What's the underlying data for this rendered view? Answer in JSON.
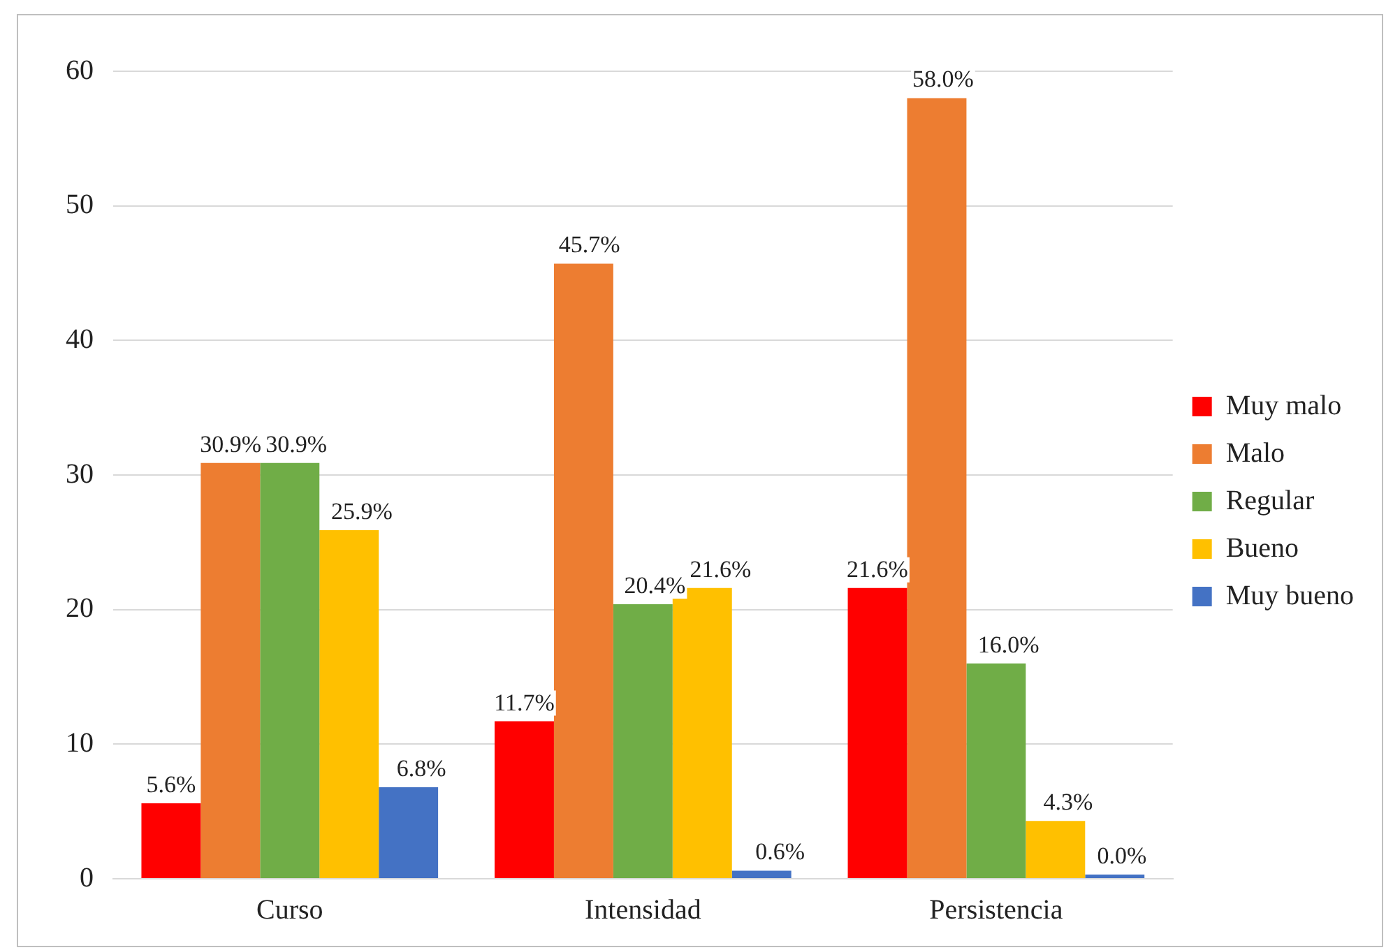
{
  "chart_data": {
    "type": "bar",
    "categories": [
      "Curso",
      "Intensidad",
      "Persistencia"
    ],
    "series": [
      {
        "name": "Muy malo",
        "color": "#ff0000",
        "values": [
          5.6,
          11.7,
          21.6
        ],
        "value_labels": [
          "5.6%",
          "11.7%",
          "21.6%"
        ]
      },
      {
        "name": "Malo",
        "color": "#ed7d31",
        "values": [
          30.9,
          45.7,
          58.0
        ],
        "value_labels": [
          "30.9%",
          "45.7%",
          "58.0%"
        ]
      },
      {
        "name": "Regular",
        "color": "#70ad47",
        "values": [
          30.9,
          20.4,
          16.0
        ],
        "value_labels": [
          "30.9%",
          "20.4%",
          "16.0%"
        ]
      },
      {
        "name": "Bueno",
        "color": "#ffc000",
        "values": [
          25.9,
          21.6,
          4.3
        ],
        "value_labels": [
          "25.9%",
          "21.6%",
          "4.3%"
        ]
      },
      {
        "name": "Muy bueno",
        "color": "#4472c4",
        "values": [
          6.8,
          0.6,
          0.0
        ],
        "value_labels": [
          "6.8%",
          "0.6%",
          "0.0%"
        ]
      }
    ],
    "ylim": [
      0,
      60
    ],
    "yticks": [
      0,
      10,
      20,
      30,
      40,
      50,
      60
    ],
    "grid": "y",
    "legend": "right"
  }
}
